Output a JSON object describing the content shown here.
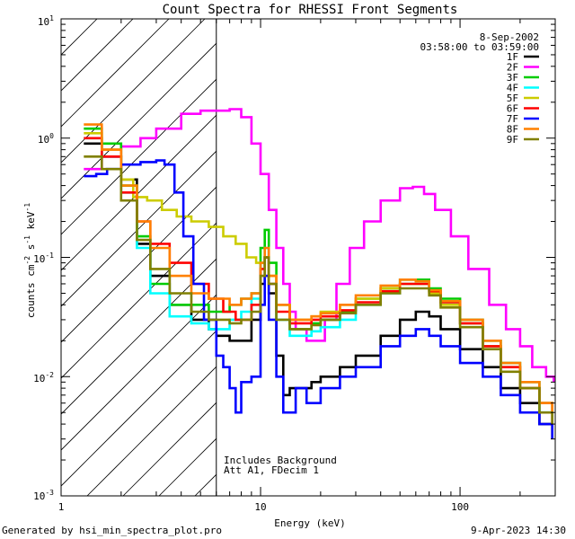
{
  "chart_data": {
    "type": "line",
    "title": "Count Spectra for RHESSI Front Segments",
    "xlabel": "Energy (keV)",
    "ylabel_parts": [
      "counts cm",
      "-2",
      " s",
      "-1",
      " keV",
      "-1"
    ],
    "x_scale": "log",
    "y_scale": "log",
    "xlim": [
      1,
      300
    ],
    "ylim": [
      0.001,
      10
    ],
    "x_ticks": [
      {
        "value": 1,
        "label": "1"
      },
      {
        "value": 10,
        "label": "10"
      },
      {
        "value": 100,
        "label": "100"
      }
    ],
    "y_ticks": [
      {
        "value": 0.001,
        "base": "10",
        "exp": "-3"
      },
      {
        "value": 0.01,
        "base": "10",
        "exp": "-2"
      },
      {
        "value": 0.1,
        "base": "10",
        "exp": "-1"
      },
      {
        "value": 1,
        "base": "10",
        "exp": "0"
      },
      {
        "value": 10,
        "base": "10",
        "exp": "1"
      }
    ],
    "hatched_region_max_energy": 6,
    "date": "8-Sep-2002",
    "time_range": "03:58:00 to 03:59:00",
    "annotation_lines": [
      "Includes Background",
      "Att A1, FDecim 1"
    ],
    "series": [
      {
        "name": "1F",
        "color": "#000000",
        "points": [
          [
            1.3,
            0.9
          ],
          [
            1.6,
            0.7
          ],
          [
            2,
            0.45
          ],
          [
            2.4,
            0.13
          ],
          [
            2.8,
            0.07
          ],
          [
            3.5,
            0.04
          ],
          [
            4.5,
            0.03
          ],
          [
            5.5,
            0.025
          ],
          [
            6,
            0.022
          ],
          [
            7,
            0.02
          ],
          [
            8,
            0.02
          ],
          [
            9,
            0.03
          ],
          [
            10,
            0.06
          ],
          [
            10.5,
            0.1
          ],
          [
            11,
            0.05
          ],
          [
            12,
            0.015
          ],
          [
            13,
            0.007
          ],
          [
            14,
            0.008
          ],
          [
            16,
            0.008
          ],
          [
            18,
            0.009
          ],
          [
            20,
            0.01
          ],
          [
            25,
            0.012
          ],
          [
            30,
            0.015
          ],
          [
            40,
            0.022
          ],
          [
            50,
            0.03
          ],
          [
            60,
            0.035
          ],
          [
            70,
            0.032
          ],
          [
            80,
            0.025
          ],
          [
            100,
            0.017
          ],
          [
            130,
            0.012
          ],
          [
            160,
            0.008
          ],
          [
            200,
            0.006
          ],
          [
            250,
            0.004
          ],
          [
            290,
            0.003
          ]
        ]
      },
      {
        "name": "2F",
        "color": "#ff00ff",
        "points": [
          [
            1.3,
            0.55
          ],
          [
            1.6,
            0.7
          ],
          [
            2,
            0.85
          ],
          [
            2.5,
            1.0
          ],
          [
            3,
            1.2
          ],
          [
            4,
            1.6
          ],
          [
            5,
            1.7
          ],
          [
            6,
            1.7
          ],
          [
            7,
            1.75
          ],
          [
            8,
            1.5
          ],
          [
            9,
            0.9
          ],
          [
            10,
            0.5
          ],
          [
            11,
            0.25
          ],
          [
            12,
            0.12
          ],
          [
            13,
            0.06
          ],
          [
            14,
            0.035
          ],
          [
            15,
            0.025
          ],
          [
            17,
            0.02
          ],
          [
            19,
            0.02
          ],
          [
            21,
            0.03
          ],
          [
            24,
            0.06
          ],
          [
            28,
            0.12
          ],
          [
            33,
            0.2
          ],
          [
            40,
            0.3
          ],
          [
            50,
            0.38
          ],
          [
            58,
            0.39
          ],
          [
            66,
            0.34
          ],
          [
            75,
            0.25
          ],
          [
            90,
            0.15
          ],
          [
            110,
            0.08
          ],
          [
            140,
            0.04
          ],
          [
            170,
            0.025
          ],
          [
            200,
            0.018
          ],
          [
            230,
            0.012
          ],
          [
            270,
            0.01
          ],
          [
            295,
            0.009
          ]
        ]
      },
      {
        "name": "3F",
        "color": "#00cc00",
        "points": [
          [
            1.3,
            1.2
          ],
          [
            1.6,
            0.9
          ],
          [
            2,
            0.4
          ],
          [
            2.4,
            0.15
          ],
          [
            2.8,
            0.06
          ],
          [
            3.5,
            0.04
          ],
          [
            4.5,
            0.04
          ],
          [
            5.5,
            0.035
          ],
          [
            7,
            0.04
          ],
          [
            8,
            0.045
          ],
          [
            9,
            0.05
          ],
          [
            10,
            0.12
          ],
          [
            10.5,
            0.17
          ],
          [
            11,
            0.09
          ],
          [
            12,
            0.04
          ],
          [
            14,
            0.025
          ],
          [
            16,
            0.025
          ],
          [
            18,
            0.028
          ],
          [
            20,
            0.03
          ],
          [
            25,
            0.035
          ],
          [
            30,
            0.045
          ],
          [
            40,
            0.055
          ],
          [
            50,
            0.065
          ],
          [
            60,
            0.065
          ],
          [
            70,
            0.055
          ],
          [
            80,
            0.045
          ],
          [
            100,
            0.03
          ],
          [
            130,
            0.02
          ],
          [
            160,
            0.013
          ],
          [
            200,
            0.009
          ],
          [
            250,
            0.006
          ],
          [
            290,
            0.005
          ]
        ]
      },
      {
        "name": "4F",
        "color": "#00ffff",
        "points": [
          [
            1.3,
            1.0
          ],
          [
            1.6,
            0.7
          ],
          [
            2,
            0.35
          ],
          [
            2.4,
            0.12
          ],
          [
            2.8,
            0.05
          ],
          [
            3.5,
            0.032
          ],
          [
            4.5,
            0.028
          ],
          [
            5.5,
            0.025
          ],
          [
            7,
            0.03
          ],
          [
            8,
            0.035
          ],
          [
            9,
            0.045
          ],
          [
            10,
            0.09
          ],
          [
            10.5,
            0.12
          ],
          [
            11,
            0.06
          ],
          [
            12,
            0.03
          ],
          [
            14,
            0.022
          ],
          [
            16,
            0.022
          ],
          [
            18,
            0.024
          ],
          [
            20,
            0.026
          ],
          [
            25,
            0.03
          ],
          [
            30,
            0.04
          ],
          [
            40,
            0.05
          ],
          [
            50,
            0.06
          ],
          [
            60,
            0.06
          ],
          [
            70,
            0.052
          ],
          [
            80,
            0.042
          ],
          [
            100,
            0.028
          ],
          [
            130,
            0.018
          ],
          [
            160,
            0.012
          ],
          [
            200,
            0.008
          ],
          [
            250,
            0.005
          ],
          [
            290,
            0.004
          ]
        ]
      },
      {
        "name": "5F",
        "color": "#cccc00",
        "points": [
          [
            1.3,
            1.1
          ],
          [
            1.6,
            0.8
          ],
          [
            2,
            0.45
          ],
          [
            2.3,
            0.32
          ],
          [
            2.7,
            0.3
          ],
          [
            3.2,
            0.25
          ],
          [
            3.8,
            0.22
          ],
          [
            4.5,
            0.2
          ],
          [
            5.5,
            0.18
          ],
          [
            6.5,
            0.15
          ],
          [
            7.5,
            0.13
          ],
          [
            8.5,
            0.1
          ],
          [
            9.5,
            0.09
          ],
          [
            10.5,
            0.1
          ],
          [
            11,
            0.07
          ],
          [
            12,
            0.04
          ],
          [
            14,
            0.03
          ],
          [
            16,
            0.03
          ],
          [
            18,
            0.032
          ],
          [
            20,
            0.035
          ],
          [
            25,
            0.04
          ],
          [
            30,
            0.045
          ],
          [
            40,
            0.055
          ],
          [
            50,
            0.06
          ],
          [
            60,
            0.06
          ],
          [
            70,
            0.05
          ],
          [
            80,
            0.04
          ],
          [
            100,
            0.028
          ],
          [
            130,
            0.018
          ],
          [
            160,
            0.012
          ],
          [
            200,
            0.008
          ],
          [
            250,
            0.006
          ],
          [
            290,
            0.005
          ]
        ]
      },
      {
        "name": "6F",
        "color": "#ff0000",
        "points": [
          [
            1.3,
            1.0
          ],
          [
            1.6,
            0.7
          ],
          [
            2,
            0.35
          ],
          [
            2.4,
            0.2
          ],
          [
            2.8,
            0.13
          ],
          [
            3.5,
            0.09
          ],
          [
            4.5,
            0.06
          ],
          [
            5.5,
            0.045
          ],
          [
            6.5,
            0.035
          ],
          [
            7.5,
            0.03
          ],
          [
            9,
            0.04
          ],
          [
            10,
            0.08
          ],
          [
            10.5,
            0.1
          ],
          [
            11,
            0.06
          ],
          [
            12,
            0.035
          ],
          [
            14,
            0.028
          ],
          [
            16,
            0.028
          ],
          [
            18,
            0.03
          ],
          [
            20,
            0.032
          ],
          [
            25,
            0.036
          ],
          [
            30,
            0.042
          ],
          [
            40,
            0.052
          ],
          [
            50,
            0.06
          ],
          [
            60,
            0.06
          ],
          [
            70,
            0.052
          ],
          [
            80,
            0.042
          ],
          [
            100,
            0.028
          ],
          [
            130,
            0.018
          ],
          [
            160,
            0.012
          ],
          [
            200,
            0.008
          ],
          [
            250,
            0.006
          ],
          [
            290,
            0.004
          ]
        ]
      },
      {
        "name": "7F",
        "color": "#0000ff",
        "points": [
          [
            1.3,
            0.48
          ],
          [
            1.5,
            0.5
          ],
          [
            1.7,
            0.55
          ],
          [
            2,
            0.6
          ],
          [
            2.5,
            0.63
          ],
          [
            3,
            0.65
          ],
          [
            3.3,
            0.6
          ],
          [
            3.7,
            0.35
          ],
          [
            4.1,
            0.15
          ],
          [
            4.6,
            0.06
          ],
          [
            5.2,
            0.03
          ],
          [
            6,
            0.015
          ],
          [
            6.5,
            0.012
          ],
          [
            7,
            0.008
          ],
          [
            7.5,
            0.005
          ],
          [
            8,
            0.009
          ],
          [
            9,
            0.01
          ],
          [
            10,
            0.04
          ],
          [
            10.5,
            0.07
          ],
          [
            11,
            0.03
          ],
          [
            12,
            0.01
          ],
          [
            13,
            0.005
          ],
          [
            15,
            0.008
          ],
          [
            17,
            0.006
          ],
          [
            20,
            0.008
          ],
          [
            25,
            0.01
          ],
          [
            30,
            0.012
          ],
          [
            40,
            0.018
          ],
          [
            50,
            0.022
          ],
          [
            60,
            0.025
          ],
          [
            70,
            0.022
          ],
          [
            80,
            0.018
          ],
          [
            100,
            0.013
          ],
          [
            130,
            0.01
          ],
          [
            160,
            0.007
          ],
          [
            200,
            0.005
          ],
          [
            250,
            0.004
          ],
          [
            290,
            0.003
          ]
        ]
      },
      {
        "name": "8F",
        "color": "#ff8000",
        "points": [
          [
            1.3,
            1.3
          ],
          [
            1.6,
            0.8
          ],
          [
            2,
            0.4
          ],
          [
            2.4,
            0.2
          ],
          [
            2.8,
            0.12
          ],
          [
            3.5,
            0.07
          ],
          [
            4.5,
            0.05
          ],
          [
            5.5,
            0.045
          ],
          [
            7,
            0.04
          ],
          [
            8,
            0.045
          ],
          [
            9,
            0.05
          ],
          [
            10,
            0.09
          ],
          [
            10.5,
            0.12
          ],
          [
            11,
            0.07
          ],
          [
            12,
            0.04
          ],
          [
            14,
            0.03
          ],
          [
            16,
            0.03
          ],
          [
            18,
            0.032
          ],
          [
            20,
            0.034
          ],
          [
            25,
            0.04
          ],
          [
            30,
            0.048
          ],
          [
            40,
            0.058
          ],
          [
            50,
            0.065
          ],
          [
            60,
            0.063
          ],
          [
            70,
            0.053
          ],
          [
            80,
            0.043
          ],
          [
            100,
            0.03
          ],
          [
            130,
            0.02
          ],
          [
            160,
            0.013
          ],
          [
            200,
            0.009
          ],
          [
            250,
            0.006
          ],
          [
            290,
            0.004
          ]
        ]
      },
      {
        "name": "9F",
        "color": "#808000",
        "points": [
          [
            1.3,
            0.7
          ],
          [
            1.6,
            0.55
          ],
          [
            2,
            0.3
          ],
          [
            2.4,
            0.14
          ],
          [
            2.8,
            0.08
          ],
          [
            3.5,
            0.05
          ],
          [
            4.5,
            0.035
          ],
          [
            5.5,
            0.03
          ],
          [
            7,
            0.028
          ],
          [
            8,
            0.03
          ],
          [
            9,
            0.035
          ],
          [
            10,
            0.07
          ],
          [
            10.5,
            0.1
          ],
          [
            11,
            0.06
          ],
          [
            12,
            0.03
          ],
          [
            14,
            0.025
          ],
          [
            16,
            0.025
          ],
          [
            18,
            0.027
          ],
          [
            20,
            0.03
          ],
          [
            25,
            0.034
          ],
          [
            30,
            0.04
          ],
          [
            40,
            0.05
          ],
          [
            50,
            0.055
          ],
          [
            60,
            0.055
          ],
          [
            70,
            0.048
          ],
          [
            80,
            0.038
          ],
          [
            100,
            0.026
          ],
          [
            130,
            0.017
          ],
          [
            160,
            0.011
          ],
          [
            200,
            0.008
          ],
          [
            250,
            0.005
          ],
          [
            290,
            0.004
          ]
        ]
      }
    ]
  },
  "footer": {
    "generated_by": "Generated by hsi_min_spectra_plot.pro",
    "timestamp": "9-Apr-2023 14:30"
  }
}
